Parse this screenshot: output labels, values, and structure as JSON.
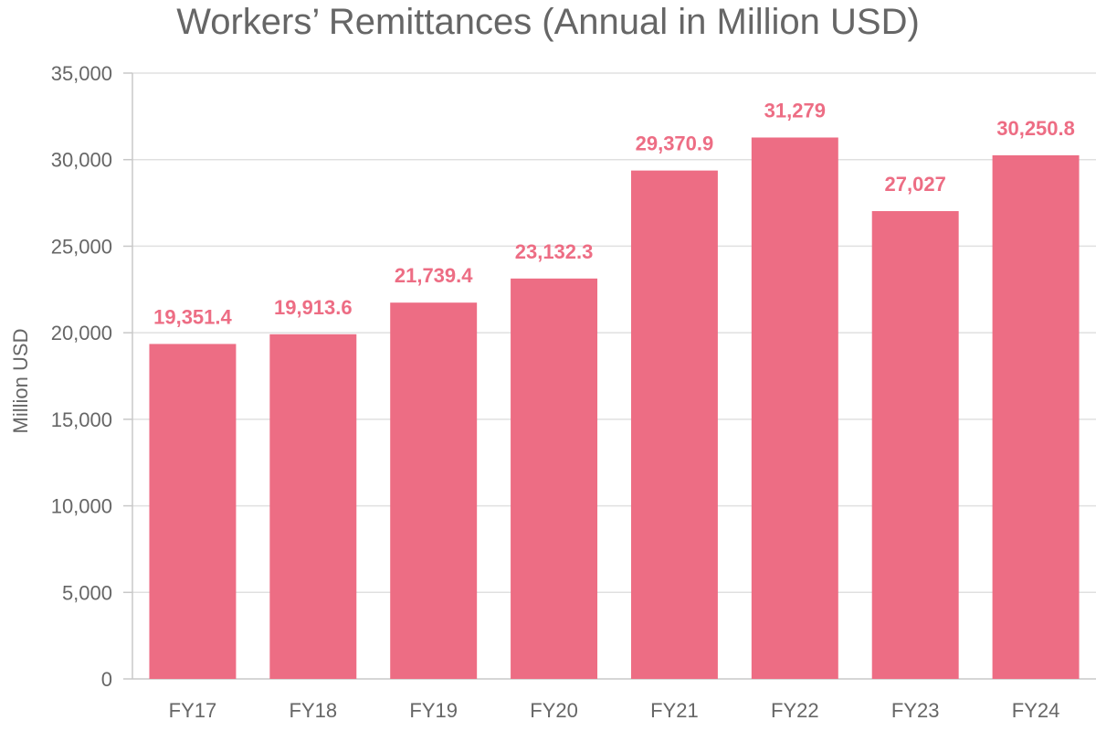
{
  "chart_data": {
    "type": "bar",
    "title": "Workers’ Remittances (Annual in Million USD)",
    "xlabel": "",
    "ylabel": "Million USD",
    "categories": [
      "FY17",
      "FY18",
      "FY19",
      "FY20",
      "FY21",
      "FY22",
      "FY23",
      "FY24"
    ],
    "values": [
      19351.4,
      19913.6,
      21739.4,
      23132.3,
      29370.9,
      31279,
      27027,
      30250.8
    ],
    "value_labels": [
      "19,351.4",
      "19,913.6",
      "21,739.4",
      "23,132.3",
      "29,370.9",
      "31,279",
      "27,027",
      "30,250.8"
    ],
    "ylim": [
      0,
      35000
    ],
    "yticks": [
      0,
      5000,
      10000,
      15000,
      20000,
      25000,
      30000,
      35000
    ],
    "ytick_labels": [
      "0",
      "5,000",
      "10,000",
      "15,000",
      "20,000",
      "25,000",
      "30,000",
      "35,000"
    ],
    "grid": true,
    "legend": "none",
    "colors": {
      "bar": "#ed6d84",
      "data_label": "#ed6d84",
      "grid": "#e0e0e0",
      "axis": "#c8c8c8",
      "text": "#666666"
    }
  }
}
